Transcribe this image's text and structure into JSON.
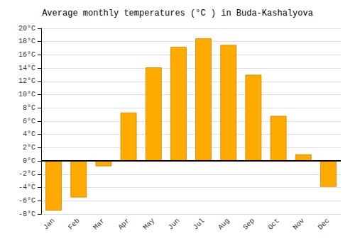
{
  "chart_data": {
    "type": "bar",
    "title": "Average monthly temperatures (°C ) in Buda-Kashalyova",
    "categories": [
      "Jan",
      "Feb",
      "Mar",
      "Apr",
      "May",
      "Jun",
      "Jul",
      "Aug",
      "Sep",
      "Oct",
      "Nov",
      "Dec"
    ],
    "values": [
      -7.5,
      -5.5,
      -0.8,
      7.3,
      14.1,
      17.2,
      18.5,
      17.5,
      13.0,
      6.8,
      1.0,
      -3.9
    ],
    "color": "#FFAA00",
    "ylim": [
      -8,
      20
    ],
    "yticks": [
      {
        "value": -8,
        "label": "-8°C"
      },
      {
        "value": -6,
        "label": "-6°C"
      },
      {
        "value": -4,
        "label": "-4°C"
      },
      {
        "value": -2,
        "label": "-2°C"
      },
      {
        "value": 0,
        "label": "0°C"
      },
      {
        "value": 2,
        "label": "2°C"
      },
      {
        "value": 4,
        "label": "4°C"
      },
      {
        "value": 6,
        "label": "6°C"
      },
      {
        "value": 8,
        "label": "8°C"
      },
      {
        "value": 10,
        "label": "10°C"
      },
      {
        "value": 12,
        "label": "12°C"
      },
      {
        "value": 14,
        "label": "14°C"
      },
      {
        "value": 16,
        "label": "16°C"
      },
      {
        "value": 18,
        "label": "18°C"
      },
      {
        "value": 20,
        "label": "20°C"
      }
    ],
    "grid": true
  }
}
